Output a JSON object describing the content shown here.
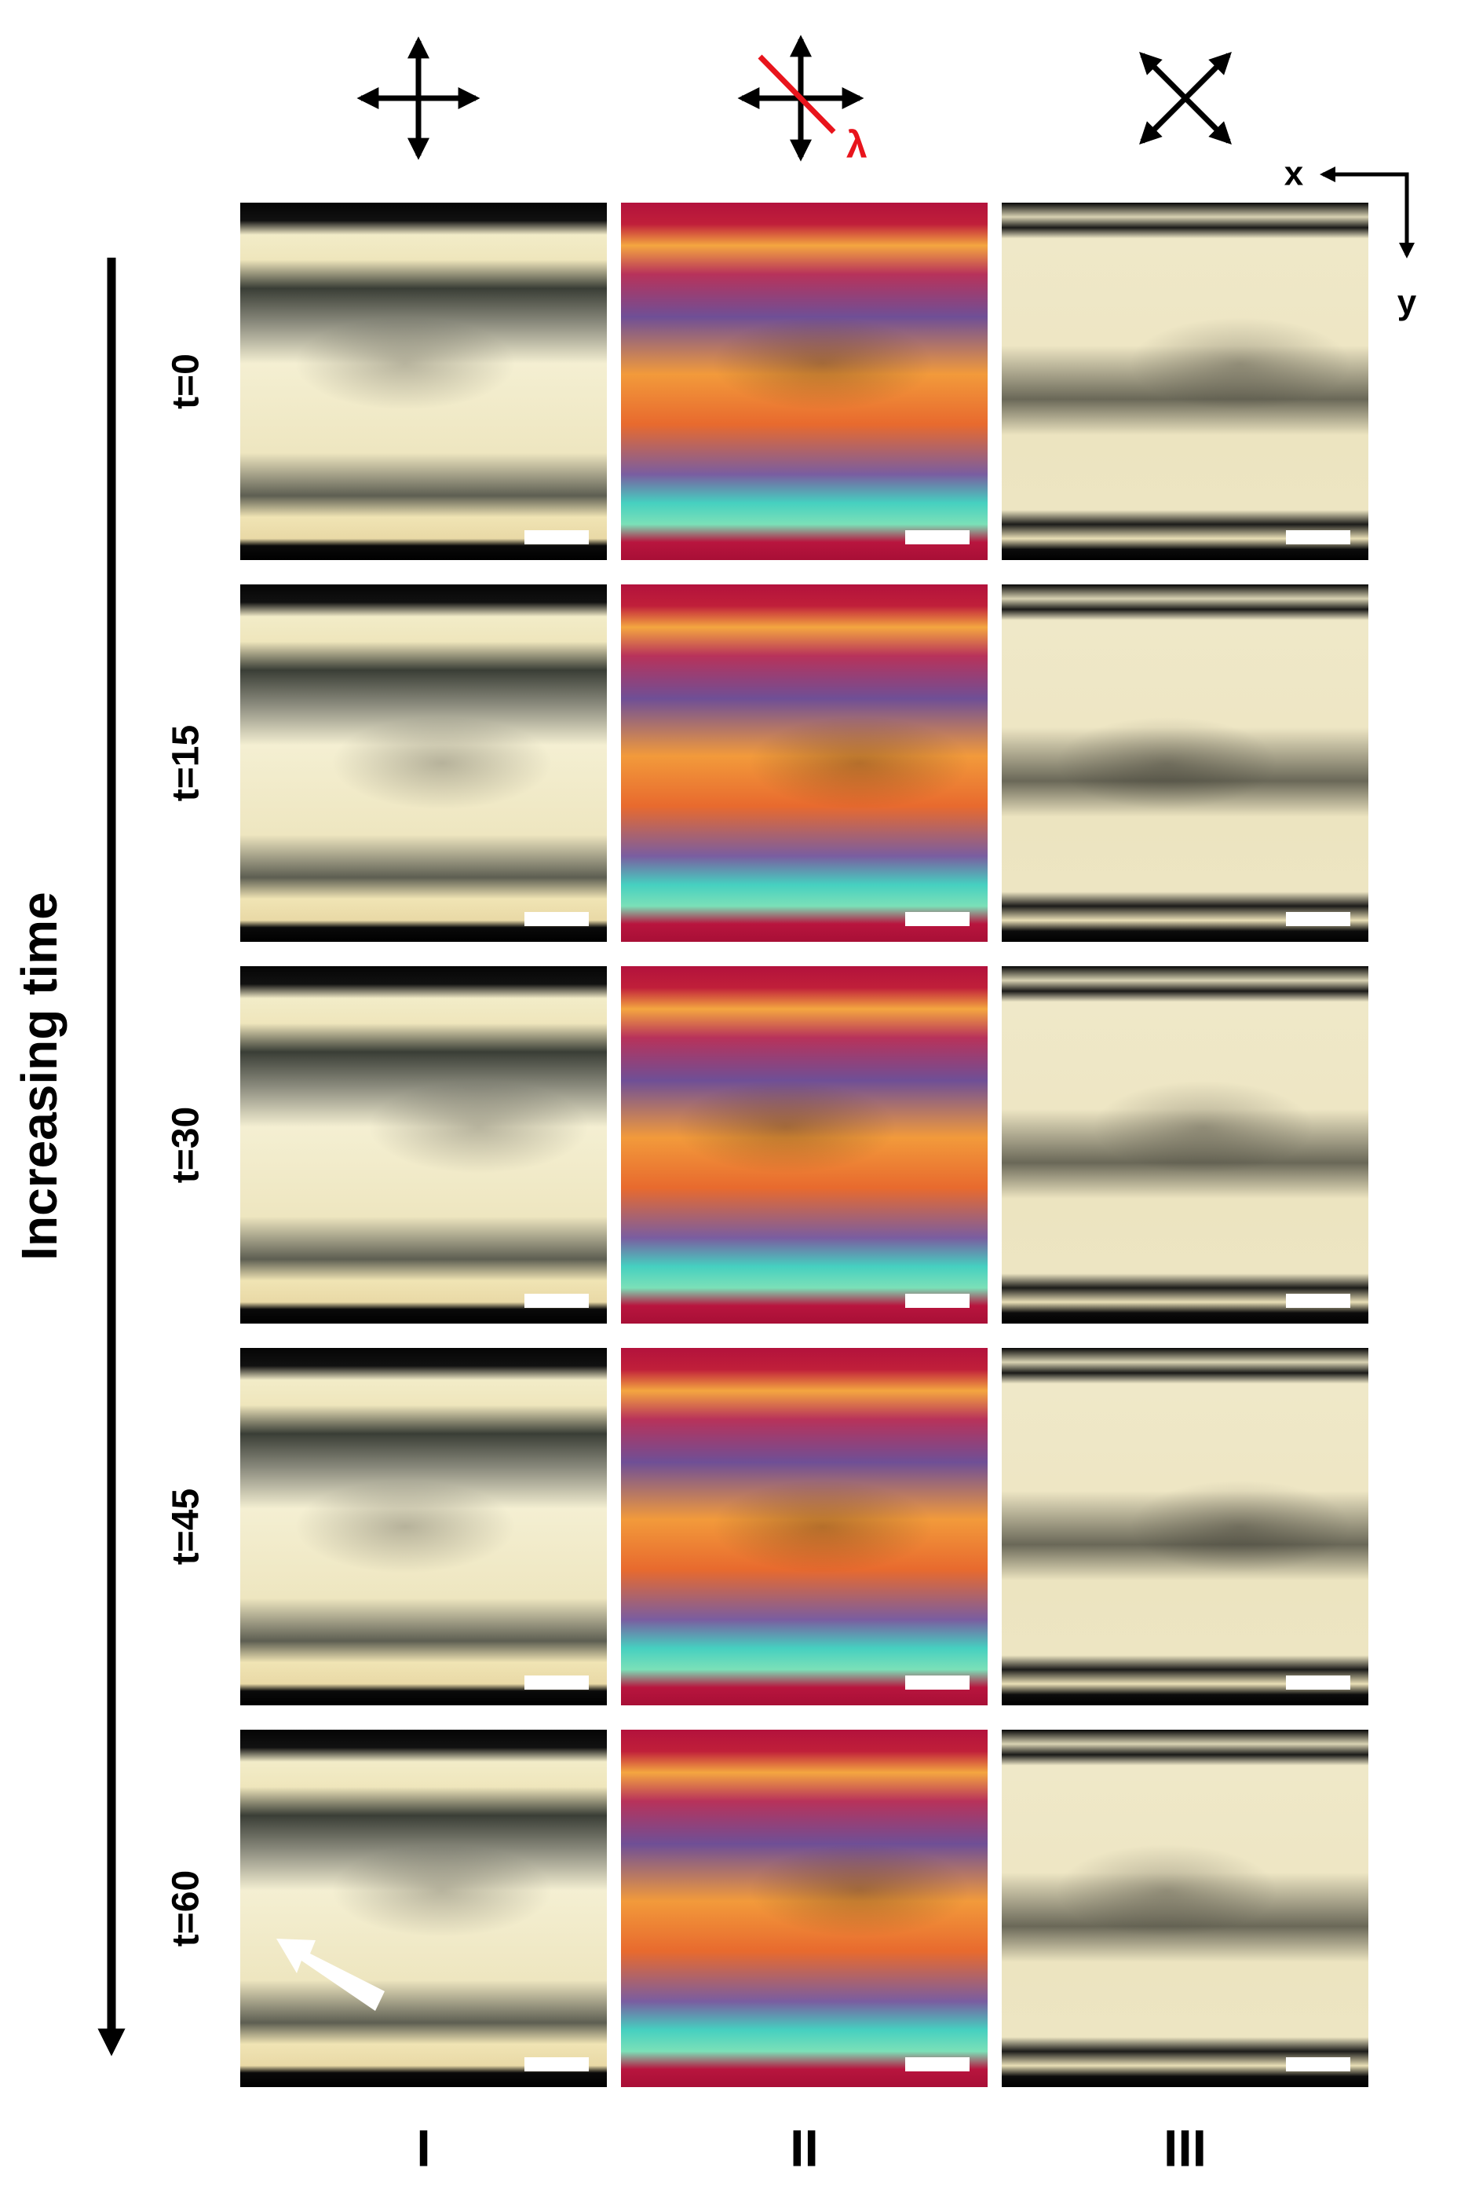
{
  "axis_label": "Increasing time",
  "time_labels": [
    "t=0",
    "t=15",
    "t=30",
    "t=45",
    "t=60"
  ],
  "column_labels": [
    "I",
    "II",
    "III"
  ],
  "retarder_label": "λ",
  "coordinate_axes": {
    "x": "x",
    "y": "y"
  }
}
